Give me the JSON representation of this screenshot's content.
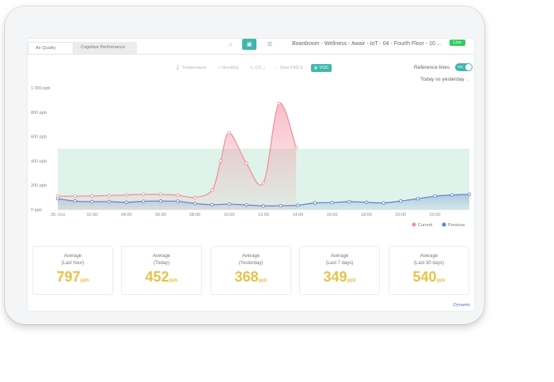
{
  "tabs": [
    "Air Quality",
    "Cognitive Performance"
  ],
  "view_icons": [
    "home-icon",
    "sensor-icon",
    "list-icon"
  ],
  "device": {
    "title": "Boardroom - Wellness - Awair - IoT - 04 - Fourth Floor - 10 ...",
    "status": "Live"
  },
  "filters": [
    {
      "icon": "thermometer-icon",
      "label": "Temperature",
      "active": false
    },
    {
      "icon": "droplet-icon",
      "label": "Humidity",
      "active": false
    },
    {
      "icon": "co2-icon",
      "label": "CO",
      "active": false
    },
    {
      "icon": "dust-icon",
      "label": "Dust PM2.5",
      "active": false
    },
    {
      "icon": "voc-icon",
      "label": "VOC",
      "active": true
    }
  ],
  "reference_lines": {
    "label": "Reference lines",
    "toggle": "ON"
  },
  "comparison": "Today vs yesterday",
  "chart_data": {
    "type": "area",
    "y_ticks": [
      "1 000 ppb",
      "800 ppb",
      "600 ppb",
      "400 ppb",
      "200 ppb",
      "0 ppb"
    ],
    "x_ticks": [
      "25. Oct",
      "02:00",
      "04:00",
      "06:00",
      "08:00",
      "10:00",
      "12:00",
      "14:00",
      "16:00",
      "18:00",
      "20:00",
      "22:00"
    ],
    "ylim": [
      0,
      1000
    ],
    "reference_band": [
      0,
      500
    ],
    "series": [
      {
        "name": "Current",
        "color": "#f28b9a",
        "x": [
          0,
          1,
          2,
          3,
          4,
          5,
          6,
          7,
          8,
          9,
          9.5,
          10,
          11,
          12,
          12.9,
          13.9
        ],
        "values": [
          110,
          110,
          112,
          115,
          120,
          125,
          125,
          118,
          100,
          160,
          400,
          630,
          380,
          220,
          870,
          510
        ]
      },
      {
        "name": "Previous",
        "color": "#5a7fd0",
        "x": [
          0,
          1,
          2,
          3,
          4,
          5,
          6,
          7,
          8,
          9,
          10,
          11,
          12,
          13,
          14,
          15,
          16,
          17,
          18,
          19,
          20,
          21,
          22,
          23,
          24
        ],
        "values": [
          90,
          70,
          65,
          65,
          60,
          68,
          70,
          68,
          50,
          40,
          45,
          38,
          30,
          32,
          35,
          55,
          58,
          65,
          60,
          55,
          70,
          90,
          110,
          120,
          125
        ]
      }
    ],
    "legend": [
      "Current",
      "Previous"
    ]
  },
  "cards": [
    {
      "label1": "Average",
      "label2": "(Last hour)",
      "value": "797",
      "unit": "ppb"
    },
    {
      "label1": "Average",
      "label2": "(Today)",
      "value": "452",
      "unit": "ppb"
    },
    {
      "label1": "Average",
      "label2": "(Yesterday)",
      "value": "368",
      "unit": "ppb"
    },
    {
      "label1": "Average",
      "label2": "(Last 7 days)",
      "value": "349",
      "unit": "ppb"
    },
    {
      "label1": "Average",
      "label2": "(Last 30 days)",
      "value": "540",
      "unit": "ppb"
    }
  ],
  "footer": "Dynamic"
}
